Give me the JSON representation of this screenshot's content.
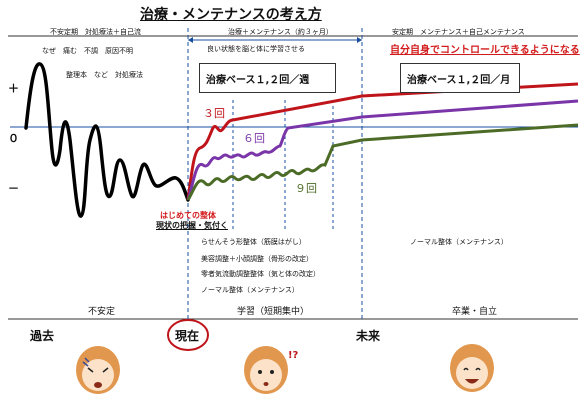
{
  "title": "治療・メンテナンスの考え方",
  "phases": {
    "p1_header": "不安定期　対処療法＋自己流",
    "p2_header": "治療＋メンテナンス（約３ヶ月）",
    "p3_header": "安定期　メンテナンス＋自己メンテナンス"
  },
  "phase1": {
    "line1": "なぜ　痛む　不調　原因不明",
    "line2": "整理本　など　対処療法",
    "footer": "不安定"
  },
  "phase2": {
    "note": "良い状態を脳と体に学習させる",
    "box": "治療ベース１,２回／週",
    "first_visit": "はじめての整体",
    "grasp": "現状の把握・気付く",
    "items": [
      "らせんそう形整体（筋膜はがし）",
      "美容調整＋小顔調整（骨形の改定）",
      "零者気流動調整整体（気と体の改定）",
      "ノーマル整体（メンテナンス）"
    ],
    "footer": "学習（短期集中）"
  },
  "phase3": {
    "headline": "自分自身でコントロールできるようになる",
    "box": "治療ベース１,２回／月",
    "note": "ノーマル整体（メンテナンス）",
    "footer": "卒業・自立"
  },
  "axis": {
    "plus": "＋",
    "zero": "０",
    "minus": "－"
  },
  "counts": {
    "c3": "３回",
    "c6": "６回",
    "c9": "９回"
  },
  "timeline": {
    "past": "過去",
    "now": "現在",
    "future": "未来"
  },
  "colors": {
    "red": "#c0141b",
    "purple": "#7a35a8",
    "green": "#4c6b26",
    "blue": "#1a4fa0",
    "accent": "#d21b1b"
  }
}
